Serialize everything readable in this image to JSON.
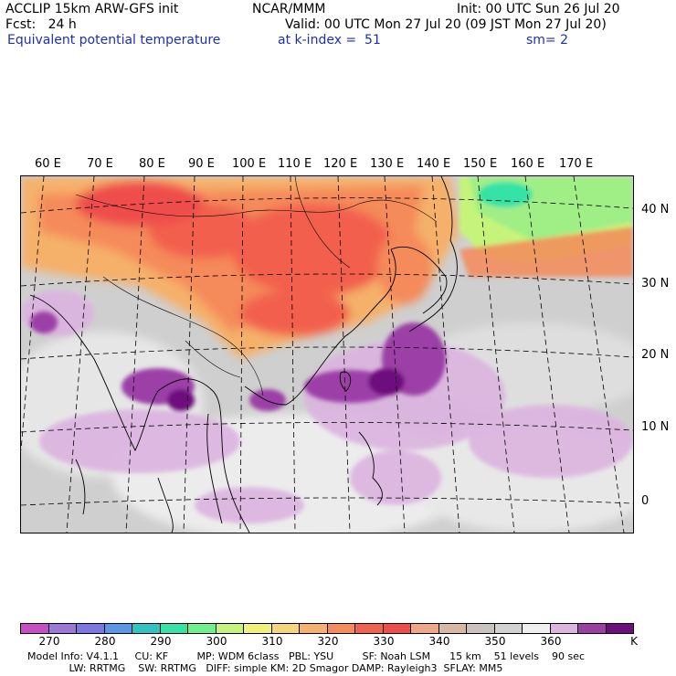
{
  "header": {
    "model": "ACCLIP 15km ARW-GFS init",
    "org": "NCAR/MMM",
    "init": "Init: 00 UTC Sun 26 Jul 20",
    "fcst": "Fcst:   24 h",
    "valid": "Valid: 00 UTC Mon 27 Jul 20 (09 JST Mon 27 Jul 20)",
    "field": "Equivalent potential temperature",
    "level": "at k-index =  51",
    "smoothing": "sm= 2"
  },
  "map": {
    "lon_labels": [
      "60 E",
      "70 E",
      "80 E",
      "90 E",
      "100 E",
      "110 E",
      "120 E",
      "130 E",
      "140 E",
      "150 E",
      "160 E",
      "170 E"
    ],
    "lat_labels": [
      "40 N",
      "30 N",
      "20 N",
      "10 N",
      "0"
    ]
  },
  "colorbar": {
    "colors": [
      "#c64fc6",
      "#9b79d6",
      "#7d78e0",
      "#5a95e6",
      "#2fc4c4",
      "#36e3a6",
      "#6ef08a",
      "#c6f47a",
      "#f2f27a",
      "#f6d67a",
      "#f5b06b",
      "#f58a5a",
      "#f2604e",
      "#ef4d4b",
      "#f2a585",
      "#d9b8a3",
      "#c9c3bb",
      "#d2d2d2",
      "#f0f0f0",
      "#dcb4e0",
      "#9c3fa7",
      "#6e0d7e"
    ],
    "labels": [
      "270",
      "280",
      "290",
      "300",
      "310",
      "320",
      "330",
      "340",
      "350",
      "360"
    ],
    "unit": "K"
  },
  "footer": {
    "line1": "Model Info: V4.1.1     CU: KF         MP: WDM 6class   PBL: YSU         SF: Noah LSM      15 km    51 levels    90 sec",
    "line2": "             LW: RRTMG    SW: RRTMG   DIFF: simple KM: 2D Smagor DAMP: Rayleigh3  SFLAY: MM5"
  }
}
